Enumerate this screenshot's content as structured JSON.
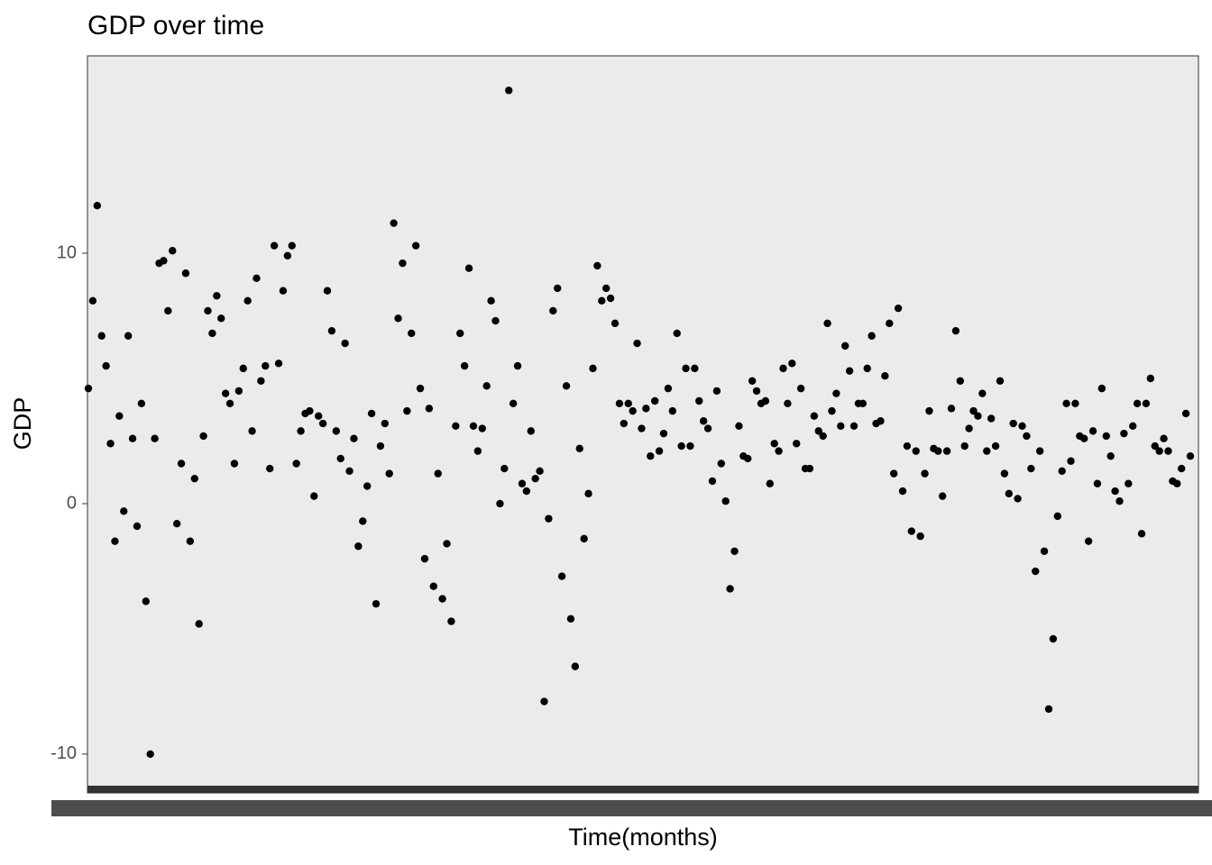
{
  "chart_data": {
    "type": "scatter",
    "title": "GDP over time",
    "x_label": "Time(months)",
    "y_label": "GDP",
    "ylim": [
      -11.55,
      17.88
    ],
    "yticks": [
      -10,
      0,
      10
    ],
    "grid": false,
    "color": "#000000",
    "values": [
      4.6,
      8.1,
      11.9,
      6.7,
      5.5,
      2.4,
      -1.5,
      3.5,
      -0.3,
      6.7,
      2.6,
      -0.9,
      4.0,
      -3.9,
      -10,
      2.6,
      9.6,
      9.7,
      7.7,
      10.1,
      -0.8,
      1.6,
      9.2,
      -1.5,
      1.0,
      -4.8,
      2.7,
      7.7,
      6.8,
      8.3,
      7.4,
      4.4,
      4.0,
      1.6,
      4.5,
      5.4,
      8.1,
      2.9,
      9.0,
      4.9,
      5.5,
      1.4,
      10.3,
      5.6,
      8.5,
      9.9,
      10.3,
      1.6,
      2.9,
      3.6,
      3.7,
      0.3,
      3.5,
      3.2,
      8.5,
      6.9,
      2.9,
      1.8,
      6.4,
      1.3,
      2.6,
      -1.7,
      -0.7,
      0.7,
      3.6,
      -4.0,
      2.3,
      3.2,
      1.2,
      11.2,
      7.4,
      9.6,
      3.7,
      6.8,
      10.3,
      4.6,
      -2.2,
      3.8,
      -3.3,
      1.2,
      -3.8,
      -1.6,
      -4.7,
      3.1,
      6.8,
      5.5,
      9.4,
      3.1,
      2.1,
      3.0,
      4.7,
      8.1,
      7.3,
      0.0,
      1.4,
      16.5,
      4.0,
      5.5,
      0.8,
      0.5,
      2.9,
      1.0,
      1.3,
      -7.9,
      -0.6,
      7.7,
      8.6,
      -2.9,
      4.7,
      -4.6,
      -6.5,
      2.2,
      -1.4,
      0.4,
      5.4,
      9.5,
      8.1,
      8.6,
      8.2,
      7.2,
      4.0,
      3.2,
      4.0,
      3.7,
      6.4,
      3.0,
      3.8,
      1.9,
      4.1,
      2.1,
      2.8,
      4.6,
      3.7,
      6.8,
      2.3,
      5.4,
      2.3,
      5.4,
      4.1,
      3.3,
      3.0,
      0.9,
      4.5,
      1.6,
      0.1,
      -3.4,
      -1.9,
      3.1,
      1.9,
      1.8,
      4.9,
      4.5,
      4.0,
      4.1,
      0.8,
      2.4,
      2.1,
      5.4,
      4.0,
      5.6,
      2.4,
      4.6,
      1.4,
      1.4,
      3.5,
      2.9,
      2.7,
      7.2,
      3.7,
      4.4,
      3.1,
      6.3,
      5.3,
      3.1,
      4.0,
      4.0,
      5.4,
      6.7,
      3.2,
      3.3,
      5.1,
      7.2,
      1.2,
      7.8,
      0.5,
      2.3,
      -1.1,
      2.1,
      -1.3,
      1.2,
      3.7,
      2.2,
      2.1,
      0.3,
      2.1,
      3.8,
      6.9,
      4.9,
      2.3,
      3.0,
      3.7,
      3.5,
      4.4,
      2.1,
      3.4,
      2.3,
      4.9,
      1.2,
      0.4,
      3.2,
      0.2,
      3.1,
      2.7,
      1.4,
      -2.7,
      2.1,
      -1.9,
      -8.2,
      -5.4,
      -0.5,
      1.3,
      4.0,
      1.7,
      4.0,
      2.7,
      2.6,
      -1.5,
      2.9,
      0.8,
      4.6,
      2.7,
      1.9,
      0.5,
      0.1,
      2.8,
      0.8,
      3.1,
      4.0,
      -1.2,
      4.0,
      5.0,
      2.3,
      2.1,
      2.6,
      2.1,
      0.9,
      0.8,
      1.4,
      3.6,
      1.9
    ]
  }
}
